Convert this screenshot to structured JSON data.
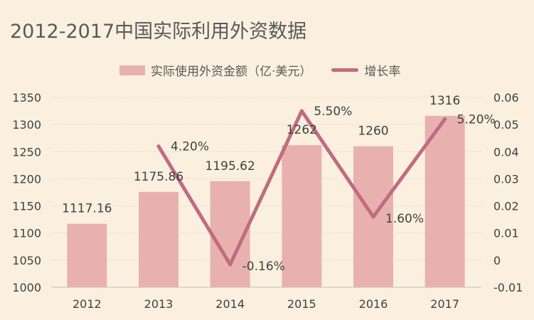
{
  "chart_data": {
    "type": "bar",
    "title": "2012-2017中国实际利用外资数据",
    "categories": [
      "2012",
      "2013",
      "2014",
      "2015",
      "2016",
      "2017"
    ],
    "series": [
      {
        "name": "实际使用外资金额（亿·美元）",
        "type": "bar",
        "axis": "left",
        "values": [
          1117.16,
          1175.86,
          1195.62,
          1262,
          1260,
          1316
        ],
        "labels": [
          "1117.16",
          "1175.86",
          "1195.62",
          "1262",
          "1260",
          "1316"
        ]
      },
      {
        "name": "增长率",
        "type": "line",
        "axis": "right",
        "values": [
          null,
          0.042,
          -0.0016,
          0.055,
          0.016,
          0.052
        ],
        "labels": [
          "",
          "4.20%",
          "-0.16%",
          "5.50%",
          "1.60%",
          "5.20%"
        ]
      }
    ],
    "y_left": {
      "ylim": [
        1000,
        1350
      ],
      "ticks": [
        "1000",
        "1050",
        "1100",
        "1150",
        "1200",
        "1250",
        "1300",
        "1350"
      ]
    },
    "y_right": {
      "ylim": [
        -0.01,
        0.06
      ],
      "ticks": [
        "-0.01",
        "0",
        "0.01",
        "0.02",
        "0.03",
        "0.04",
        "0.05",
        "0.06"
      ]
    },
    "grid": true,
    "legend_position": "top",
    "colors": {
      "bar": "#e8b1b0",
      "line": "#c06c80",
      "grid": "#d9cfc2",
      "background": "#fbf0df"
    }
  }
}
